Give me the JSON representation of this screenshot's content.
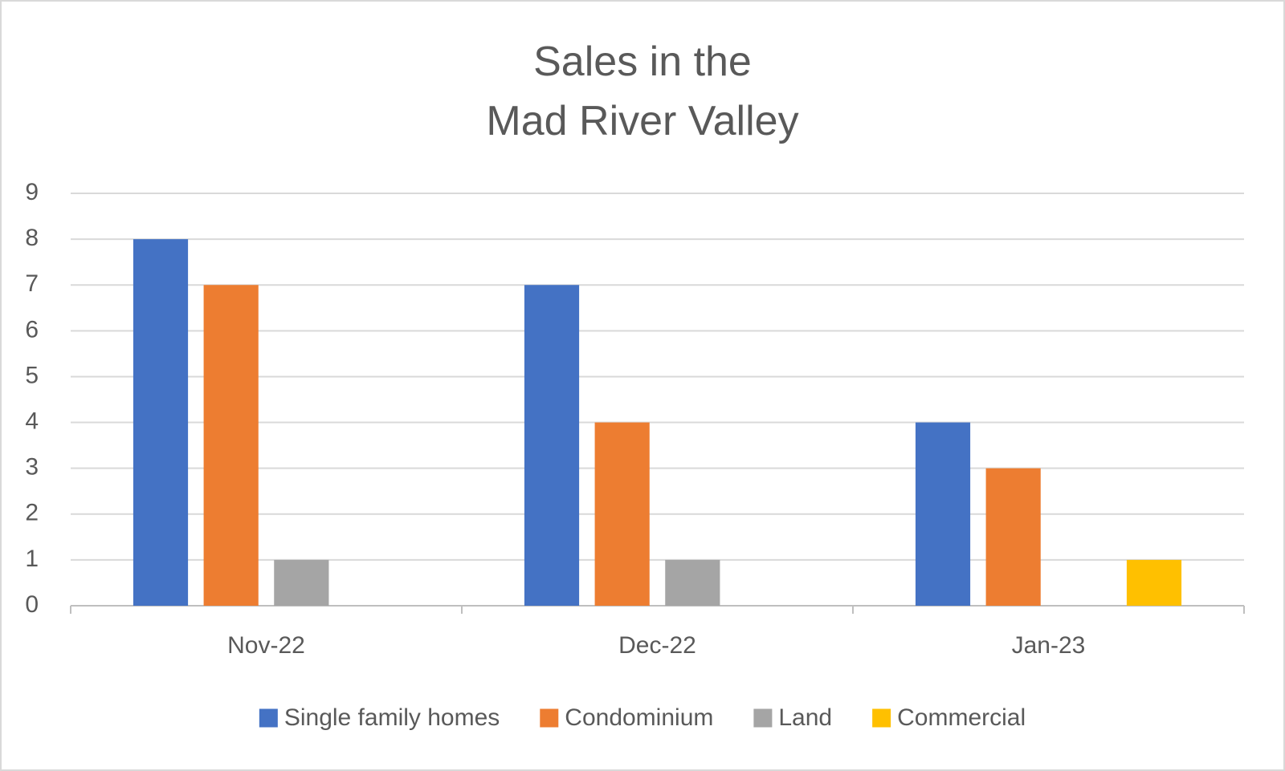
{
  "chart_data": {
    "type": "bar",
    "title": "Sales in the\nMad River Valley",
    "categories": [
      "Nov-22",
      "Dec-22",
      "Jan-23"
    ],
    "series": [
      {
        "name": "Single family homes",
        "color": "#4472c4",
        "values": [
          8,
          7,
          4
        ]
      },
      {
        "name": "Condominium",
        "color": "#ed7d31",
        "values": [
          7,
          4,
          3
        ]
      },
      {
        "name": "Land",
        "color": "#a5a5a5",
        "values": [
          1,
          1,
          0
        ]
      },
      {
        "name": "Commercial",
        "color": "#ffc000",
        "values": [
          0,
          0,
          1
        ]
      }
    ],
    "ylim": [
      0,
      9
    ],
    "yticks": [
      0,
      1,
      2,
      3,
      4,
      5,
      6,
      7,
      8,
      9
    ],
    "grid": true,
    "legend": "bottom"
  }
}
